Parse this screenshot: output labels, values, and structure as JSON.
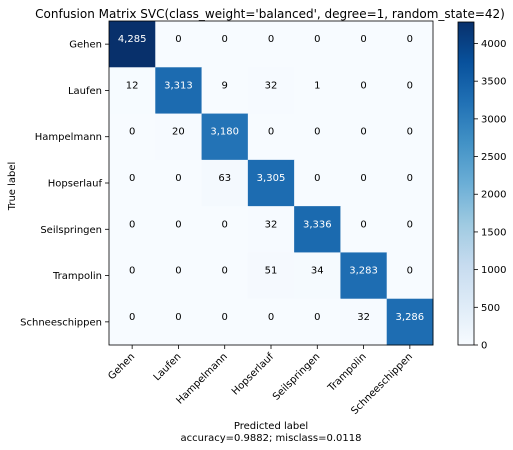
{
  "chart_data": {
    "type": "heatmap",
    "title": "Confusion Matrix SVC(class_weight='balanced', degree=1, random_state=42)",
    "xlabel": "Predicted label",
    "xlabel_line2": "accuracy=0.9882; misclass=0.0118",
    "ylabel": "True label",
    "labels": [
      "Gehen",
      "Laufen",
      "Hampelmann",
      "Hopserlauf",
      "Seilspringen",
      "Trampolin",
      "Schneeschippen"
    ],
    "matrix": [
      [
        4285,
        0,
        0,
        0,
        0,
        0,
        0
      ],
      [
        12,
        3313,
        9,
        32,
        1,
        0,
        0
      ],
      [
        0,
        20,
        3180,
        0,
        0,
        0,
        0
      ],
      [
        0,
        0,
        63,
        3305,
        0,
        0,
        0
      ],
      [
        0,
        0,
        0,
        32,
        3336,
        0,
        0
      ],
      [
        0,
        0,
        0,
        51,
        34,
        3283,
        0
      ],
      [
        0,
        0,
        0,
        0,
        0,
        32,
        3286
      ]
    ],
    "cell_text": [
      [
        "4,285",
        "0",
        "0",
        "0",
        "0",
        "0",
        "0"
      ],
      [
        "12",
        "3,313",
        "9",
        "32",
        "1",
        "0",
        "0"
      ],
      [
        "0",
        "20",
        "3,180",
        "0",
        "0",
        "0",
        "0"
      ],
      [
        "0",
        "0",
        "63",
        "3,305",
        "0",
        "0",
        "0"
      ],
      [
        "0",
        "0",
        "0",
        "32",
        "3,336",
        "0",
        "0"
      ],
      [
        "0",
        "0",
        "0",
        "51",
        "34",
        "3,283",
        "0"
      ],
      [
        "0",
        "0",
        "0",
        "0",
        "0",
        "32",
        "3,286"
      ]
    ],
    "colormap": "Blues",
    "vmin": 0,
    "vmax": 4285,
    "colorbar_ticks": [
      "0",
      "500",
      "1000",
      "1500",
      "2000",
      "2500",
      "3000",
      "3500",
      "4000"
    ],
    "colorbar_tick_values": [
      0,
      500,
      1000,
      1500,
      2000,
      2500,
      3000,
      3500,
      4000
    ]
  }
}
